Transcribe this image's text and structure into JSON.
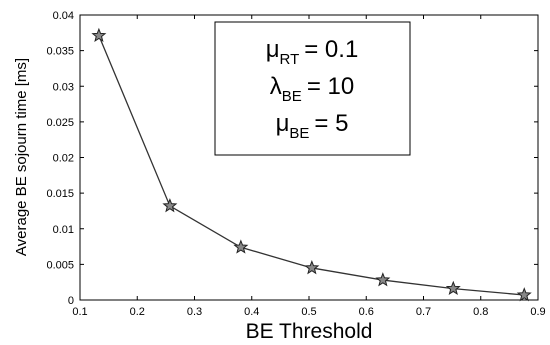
{
  "chart_data": {
    "type": "line",
    "xlabel": "BE Threshold",
    "ylabel": "Average BE sojourn time [ms]",
    "xlim": [
      0.1,
      0.9
    ],
    "ylim": [
      0,
      0.04
    ],
    "xticks": [
      "0.1",
      "0.2",
      "0.3",
      "0.4",
      "0.5",
      "0.6",
      "0.7",
      "0.8",
      "0.9"
    ],
    "yticks": [
      "0",
      "0.005",
      "0.01",
      "0.015",
      "0.02",
      "0.025",
      "0.03",
      "0.035",
      "0.04"
    ],
    "grid": false,
    "marker": "star",
    "line_color": "#333333",
    "series": [
      {
        "x": [
          0.133,
          0.257,
          0.381,
          0.505,
          0.629,
          0.752,
          0.876
        ],
        "y": [
          0.0371,
          0.0132,
          0.0074,
          0.0045,
          0.0028,
          0.0016,
          0.0007
        ]
      }
    ],
    "annotation": {
      "lines": [
        {
          "symbol": "μ",
          "sub": "RT",
          "value": "= 0.1"
        },
        {
          "symbol": "λ",
          "sub": "BE",
          "value": "= 10"
        },
        {
          "symbol": "μ",
          "sub": "BE",
          "value": "= 5"
        }
      ]
    }
  }
}
